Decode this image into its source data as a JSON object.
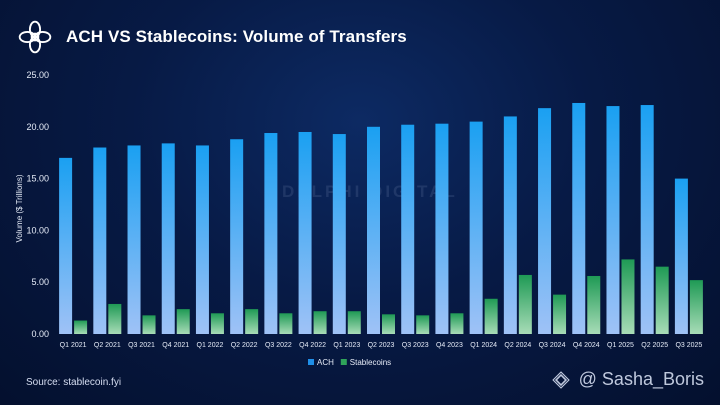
{
  "header": {
    "title": "ACH VS Stablecoins: Volume of Transfers",
    "logo_icon": "delphi-flower-logo"
  },
  "footer": {
    "source": "Source: stablecoin.fyi",
    "watermark_text": "@ Sasha_Boris",
    "watermark_icon": "binance-diamond-icon"
  },
  "background_watermark": {
    "text": "DELPHI DIGITAL"
  },
  "chart_data": {
    "type": "bar",
    "title": "ACH VS Stablecoins: Volume of Transfers",
    "xlabel": "",
    "ylabel": "Volume ($ Trillions)",
    "ylim": [
      0,
      25
    ],
    "yticks": [
      "0.00",
      "5.00",
      "10.00",
      "15.00",
      "20.00",
      "25.00"
    ],
    "grid": false,
    "legend": "bottom-center",
    "categories": [
      "Q1 2021",
      "Q2 2021",
      "Q3 2021",
      "Q4 2021",
      "Q1 2022",
      "Q2 2022",
      "Q3 2022",
      "Q4 2022",
      "Q1 2023",
      "Q2 2023",
      "Q3 2023",
      "Q4 2023",
      "Q1 2024",
      "Q2 2024",
      "Q3 2024",
      "Q4 2024",
      "Q1 2025",
      "Q2 2025",
      "Q3 2025"
    ],
    "series": [
      {
        "name": "ACH",
        "color": "#1f8fe8",
        "values": [
          17.0,
          18.0,
          18.2,
          18.4,
          18.2,
          18.8,
          19.4,
          19.5,
          19.3,
          20.0,
          20.2,
          20.3,
          20.5,
          21.0,
          21.8,
          22.3,
          22.0,
          22.1,
          15.0
        ]
      },
      {
        "name": "Stablecoins",
        "color": "#2fa45a",
        "values": [
          1.3,
          2.9,
          1.8,
          2.4,
          2.0,
          2.4,
          2.0,
          2.2,
          2.2,
          1.9,
          1.8,
          2.0,
          3.4,
          5.7,
          3.8,
          5.6,
          7.2,
          6.5,
          5.2
        ]
      }
    ]
  }
}
